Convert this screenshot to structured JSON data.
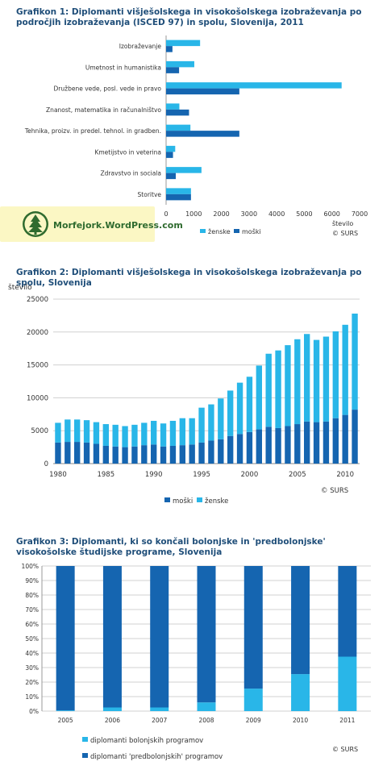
{
  "colors": {
    "zenske": "#29b6e8",
    "moski": "#1565b0",
    "title": "#1f4e79",
    "grid": "#d0d0d0"
  },
  "logo": {
    "text": "Morfejork.WordPress.com",
    "icon": "pine-tree-icon"
  },
  "chart_data": [
    {
      "type": "bar",
      "orientation": "horizontal",
      "title": "Grafikon 1: Diplomanti višješolskega in visokošolskega izobraževanja po področjih izobraževanja (ISCED 97) in spolu, Slovenija, 2011",
      "categories": [
        "Izobraževanje",
        "Umetnost in humanistika",
        "Družbene vede, posl. vede in pravo",
        "Znanost, matematika in računalništvo",
        "Tehnika, proizv. in predel. tehnol. in gradben.",
        "Kmetijstvo in veterina",
        "Zdravstvo in sociala",
        "Storitve"
      ],
      "series": [
        {
          "name": "ženske",
          "values": [
            1230,
            1020,
            6350,
            480,
            880,
            330,
            1280,
            900
          ]
        },
        {
          "name": "moški",
          "values": [
            230,
            470,
            2650,
            830,
            2650,
            250,
            350,
            900
          ]
        }
      ],
      "xlim": [
        0,
        7000
      ],
      "xticks": [
        "0",
        "1000",
        "2000",
        "3000",
        "4000",
        "5000",
        "6000",
        "7000"
      ],
      "xlabel": "število",
      "legend": "bottom",
      "source": "© SURS"
    },
    {
      "type": "bar",
      "stacked": true,
      "title": "Grafikon 2: Diplomanti višješolskega in visokošolskega izobraževanja po spolu, Slovenija",
      "ylabel": "število",
      "ylim": [
        0,
        25000
      ],
      "yticks": [
        "0",
        "5000",
        "10000",
        "15000",
        "20000",
        "25000"
      ],
      "x": [
        1980,
        1981,
        1982,
        1983,
        1984,
        1985,
        1986,
        1987,
        1988,
        1989,
        1990,
        1991,
        1992,
        1993,
        1994,
        1995,
        1996,
        1997,
        1998,
        1999,
        2000,
        2001,
        2002,
        2003,
        2004,
        2005,
        2006,
        2007,
        2008,
        2009,
        2010,
        2011
      ],
      "xticks": [
        "1980",
        "1985",
        "1990",
        "1995",
        "2000",
        "2005",
        "2010"
      ],
      "series": [
        {
          "name": "moški",
          "values": [
            3200,
            3300,
            3300,
            3200,
            3000,
            2700,
            2600,
            2500,
            2600,
            2800,
            2900,
            2600,
            2700,
            2800,
            2900,
            3200,
            3500,
            3700,
            4200,
            4500,
            4800,
            5200,
            5600,
            5400,
            5700,
            6000,
            6400,
            6300,
            6400,
            6900,
            7400,
            8200
          ]
        },
        {
          "name": "ženske",
          "values": [
            3000,
            3400,
            3400,
            3400,
            3300,
            3300,
            3300,
            3200,
            3300,
            3400,
            3600,
            3500,
            3800,
            4100,
            4000,
            5300,
            5500,
            6200,
            6900,
            7800,
            8400,
            9700,
            11100,
            11800,
            12300,
            12900,
            13300,
            12500,
            12900,
            13200,
            13700,
            14600
          ]
        }
      ],
      "legend": "bottom",
      "source": "© SURS"
    },
    {
      "type": "bar",
      "stacked": true,
      "percent": true,
      "title": "Grafikon 3: Diplomanti, ki so končali bolonjske in 'predbolonjske' visokošolske študijske programe, Slovenija",
      "categories": [
        "2005",
        "2006",
        "2007",
        "2008",
        "2009",
        "2010",
        "2011"
      ],
      "yticks": [
        "0%",
        "10%",
        "20%",
        "30%",
        "40%",
        "50%",
        "60%",
        "70%",
        "80%",
        "90%",
        "100%"
      ],
      "ylim": [
        0,
        100
      ],
      "series": [
        {
          "name": "diplomanti bolonjskih programov",
          "values": [
            0.5,
            2.5,
            2.5,
            6,
            15.5,
            25.5,
            37.5
          ]
        },
        {
          "name": "diplomanti 'predbolonjskih' programov",
          "values": [
            99.5,
            97.5,
            97.5,
            94,
            84.5,
            74.5,
            62.5
          ]
        }
      ],
      "legend": "bottom-left",
      "source": "© SURS"
    }
  ]
}
